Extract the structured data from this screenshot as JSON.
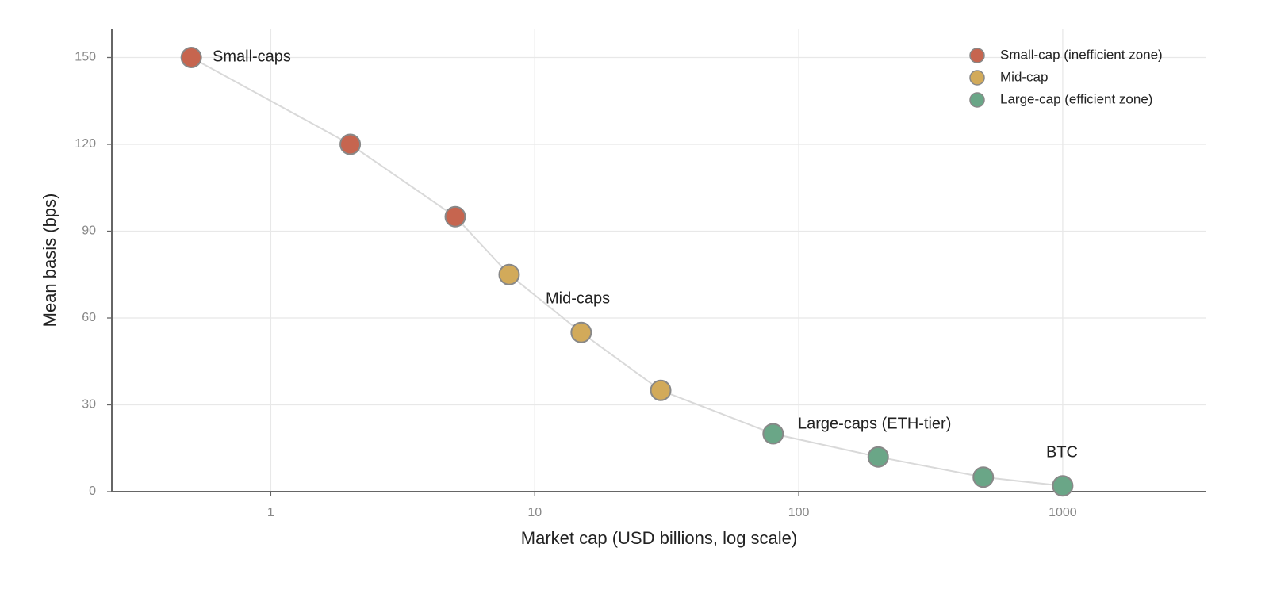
{
  "chart_data": {
    "type": "scatter",
    "x_label": "Market cap (USD billions, log scale)",
    "y_label": "Mean basis (bps)",
    "xscale": "log",
    "xlim": [
      0.25,
      3500
    ],
    "xticks": [
      1,
      10,
      100,
      1000
    ],
    "ylim": [
      0,
      160
    ],
    "yticks": [
      0,
      30,
      60,
      90,
      120,
      150
    ],
    "grid": true,
    "legend": "upper right",
    "connect_line": true,
    "line_color": "#d9d9d9",
    "series": [
      {
        "name": "Small-cap (inefficient zone)",
        "color": "#c6654f",
        "x": [
          0.5,
          2,
          5
        ],
        "values": [
          150,
          120,
          95
        ]
      },
      {
        "name": "Mid-cap",
        "color": "#d2aa5a",
        "x": [
          8,
          15,
          30
        ],
        "values": [
          75,
          55,
          35
        ]
      },
      {
        "name": "Large-cap (efficient zone)",
        "color": "#6aa687",
        "x": [
          80,
          200,
          500,
          1000
        ],
        "values": [
          20,
          12,
          5,
          2
        ]
      }
    ],
    "annotations": [
      "Small-caps",
      "Mid-caps",
      "Large-caps (ETH-tier)",
      "BTC"
    ]
  }
}
